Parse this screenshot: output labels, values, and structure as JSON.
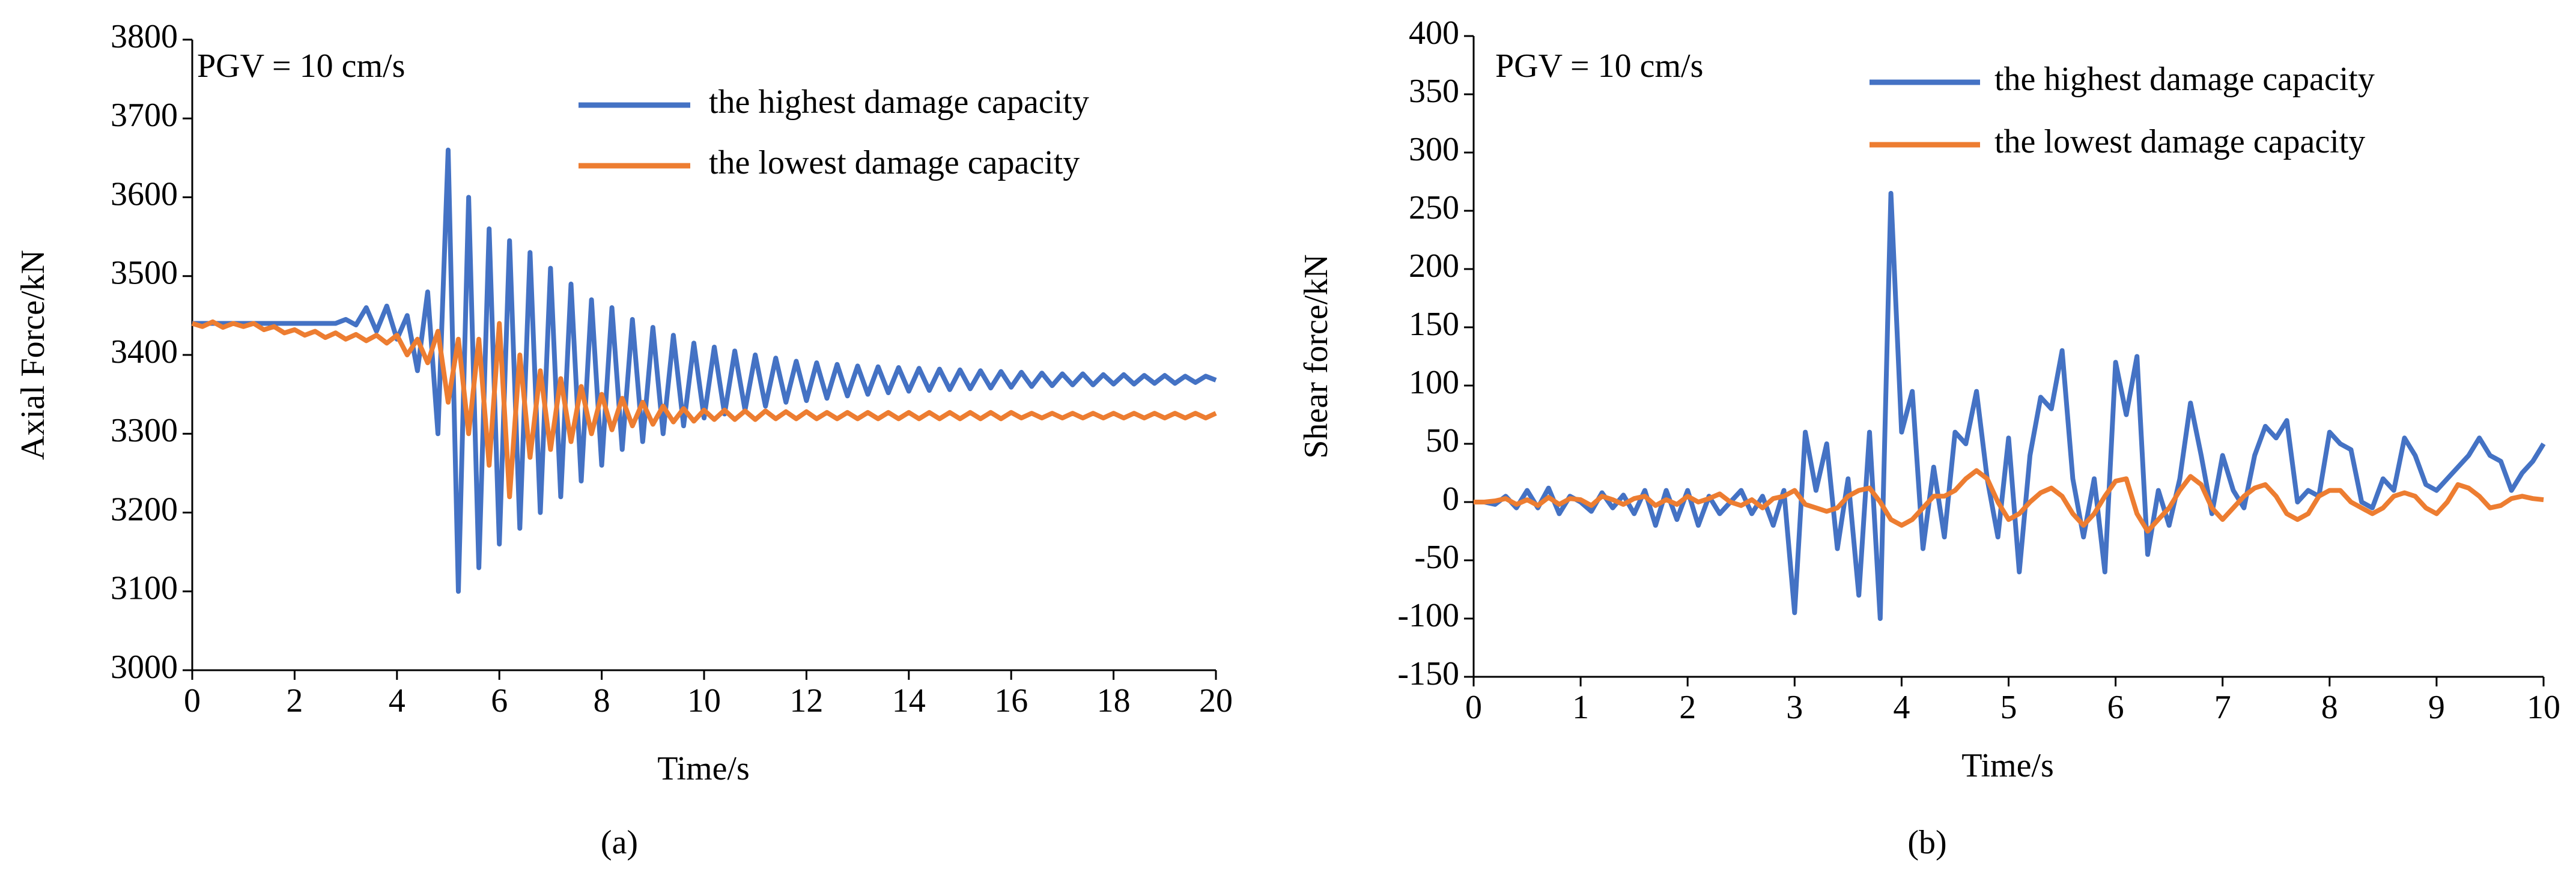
{
  "chart_data": [
    {
      "type": "line",
      "caption": "(a)",
      "annotation": "PGV = 10 cm/s",
      "x_label": "Time/s",
      "y_label": "Axial Force/kN",
      "xlim": [
        0,
        20
      ],
      "xticks": [
        0,
        2,
        4,
        6,
        8,
        10,
        12,
        14,
        16,
        18,
        20
      ],
      "ylim": [
        3000,
        3800
      ],
      "yticks": [
        3000,
        3100,
        3200,
        3300,
        3400,
        3500,
        3600,
        3700,
        3800
      ],
      "legend": "upper right",
      "grid": false,
      "x": [
        0,
        0.2,
        0.4,
        0.6,
        0.8,
        1,
        1.2,
        1.4,
        1.6,
        1.8,
        2,
        2.2,
        2.4,
        2.6,
        2.8,
        3,
        3.2,
        3.4,
        3.6,
        3.8,
        4,
        4.2,
        4.4,
        4.6,
        4.8,
        5,
        5.2,
        5.4,
        5.6,
        5.8,
        6,
        6.2,
        6.4,
        6.6,
        6.8,
        7,
        7.2,
        7.4,
        7.6,
        7.8,
        8,
        8.2,
        8.4,
        8.6,
        8.8,
        9,
        9.2,
        9.4,
        9.6,
        9.8,
        10,
        10.2,
        10.4,
        10.6,
        10.8,
        11,
        11.2,
        11.4,
        11.6,
        11.8,
        12,
        12.2,
        12.4,
        12.6,
        12.8,
        13,
        13.2,
        13.4,
        13.6,
        13.8,
        14,
        14.2,
        14.4,
        14.6,
        14.8,
        15,
        15.2,
        15.4,
        15.6,
        15.8,
        16,
        16.2,
        16.4,
        16.6,
        16.8,
        17,
        17.2,
        17.4,
        17.6,
        17.8,
        18,
        18.2,
        18.4,
        18.6,
        18.8,
        19,
        19.2,
        19.4,
        19.6,
        19.8,
        20
      ],
      "series": [
        {
          "name": "the highest damage capacity",
          "color": "#4472c4",
          "values": [
            3440,
            3440,
            3440,
            3440,
            3440,
            3440,
            3440,
            3440,
            3440,
            3440,
            3440,
            3440,
            3440,
            3440,
            3440,
            3445,
            3438,
            3460,
            3430,
            3462,
            3420,
            3450,
            3380,
            3480,
            3300,
            3660,
            3100,
            3600,
            3130,
            3560,
            3160,
            3545,
            3180,
            3530,
            3200,
            3510,
            3220,
            3490,
            3240,
            3470,
            3260,
            3460,
            3280,
            3445,
            3290,
            3435,
            3300,
            3425,
            3310,
            3415,
            3320,
            3410,
            3325,
            3405,
            3330,
            3400,
            3335,
            3396,
            3340,
            3392,
            3342,
            3390,
            3345,
            3388,
            3348,
            3386,
            3350,
            3385,
            3352,
            3384,
            3354,
            3383,
            3355,
            3382,
            3356,
            3381,
            3357,
            3380,
            3358,
            3379,
            3359,
            3378,
            3360,
            3377,
            3361,
            3376,
            3362,
            3376,
            3362,
            3375,
            3363,
            3375,
            3363,
            3374,
            3364,
            3374,
            3364,
            3373,
            3365,
            3373,
            3368
          ]
        },
        {
          "name": "the lowest damage capacity",
          "color": "#ed7d31",
          "values": [
            3440,
            3436,
            3442,
            3435,
            3440,
            3436,
            3440,
            3432,
            3436,
            3428,
            3432,
            3425,
            3430,
            3422,
            3428,
            3420,
            3426,
            3418,
            3425,
            3415,
            3425,
            3400,
            3420,
            3390,
            3430,
            3340,
            3420,
            3300,
            3420,
            3260,
            3440,
            3220,
            3400,
            3270,
            3380,
            3280,
            3370,
            3290,
            3360,
            3300,
            3350,
            3305,
            3345,
            3310,
            3340,
            3312,
            3335,
            3315,
            3332,
            3316,
            3330,
            3318,
            3330,
            3318,
            3329,
            3318,
            3329,
            3319,
            3328,
            3319,
            3328,
            3319,
            3327,
            3319,
            3327,
            3319,
            3327,
            3319,
            3327,
            3319,
            3327,
            3319,
            3327,
            3319,
            3327,
            3319,
            3327,
            3319,
            3327,
            3319,
            3327,
            3320,
            3326,
            3320,
            3326,
            3320,
            3326,
            3320,
            3326,
            3320,
            3326,
            3320,
            3326,
            3320,
            3326,
            3320,
            3326,
            3320,
            3326,
            3320,
            3326
          ]
        }
      ]
    },
    {
      "type": "line",
      "caption": "(b)",
      "annotation": "PGV = 10 cm/s",
      "x_label": "Time/s",
      "y_label": "Shear force/kN",
      "xlim": [
        0,
        10
      ],
      "xticks": [
        0,
        1,
        2,
        3,
        4,
        5,
        6,
        7,
        8,
        9,
        10
      ],
      "ylim": [
        -150,
        400
      ],
      "yticks": [
        -150,
        -100,
        -50,
        0,
        50,
        100,
        150,
        200,
        250,
        300,
        350,
        400
      ],
      "legend": "upper right",
      "grid": false,
      "x": [
        0,
        0.1,
        0.2,
        0.3,
        0.4,
        0.5,
        0.6,
        0.7,
        0.8,
        0.9,
        1,
        1.1,
        1.2,
        1.3,
        1.4,
        1.5,
        1.6,
        1.7,
        1.8,
        1.9,
        2,
        2.1,
        2.2,
        2.3,
        2.4,
        2.5,
        2.6,
        2.7,
        2.8,
        2.9,
        3,
        3.1,
        3.2,
        3.3,
        3.4,
        3.5,
        3.6,
        3.7,
        3.8,
        3.9,
        4,
        4.1,
        4.2,
        4.3,
        4.4,
        4.5,
        4.6,
        4.7,
        4.8,
        4.9,
        5,
        5.1,
        5.2,
        5.3,
        5.4,
        5.5,
        5.6,
        5.7,
        5.8,
        5.9,
        6,
        6.1,
        6.2,
        6.3,
        6.4,
        6.5,
        6.6,
        6.7,
        6.8,
        6.9,
        7,
        7.1,
        7.2,
        7.3,
        7.4,
        7.5,
        7.6,
        7.7,
        7.8,
        7.9,
        8,
        8.1,
        8.2,
        8.3,
        8.4,
        8.5,
        8.6,
        8.7,
        8.8,
        8.9,
        9,
        9.1,
        9.2,
        9.3,
        9.4,
        9.5,
        9.6,
        9.7,
        9.8,
        9.9,
        10
      ],
      "series": [
        {
          "name": "the highest damage capacity",
          "color": "#4472c4",
          "values": [
            0,
            0,
            -2,
            5,
            -5,
            10,
            -5,
            12,
            -10,
            5,
            0,
            -8,
            8,
            -5,
            6,
            -10,
            10,
            -20,
            10,
            -15,
            10,
            -20,
            5,
            -10,
            0,
            10,
            -10,
            5,
            -20,
            10,
            -95,
            60,
            10,
            50,
            -40,
            20,
            -80,
            60,
            -100,
            265,
            60,
            95,
            -40,
            30,
            -30,
            60,
            50,
            95,
            20,
            -30,
            55,
            -60,
            40,
            90,
            80,
            130,
            20,
            -30,
            20,
            -60,
            120,
            75,
            125,
            -45,
            10,
            -20,
            20,
            85,
            40,
            -10,
            40,
            10,
            -5,
            40,
            65,
            55,
            70,
            0,
            10,
            5,
            60,
            50,
            45,
            0,
            -5,
            20,
            10,
            55,
            40,
            15,
            10,
            20,
            30,
            40,
            55,
            40,
            35,
            10,
            25,
            35,
            50
          ]
        },
        {
          "name": "the lowest damage capacity",
          "color": "#ed7d31",
          "values": [
            0,
            0,
            1,
            3,
            -2,
            2,
            -3,
            4,
            -2,
            3,
            2,
            -3,
            5,
            2,
            -2,
            3,
            5,
            -3,
            2,
            -2,
            5,
            0,
            3,
            7,
            0,
            -3,
            2,
            -5,
            3,
            5,
            10,
            -2,
            -5,
            -8,
            -5,
            5,
            10,
            12,
            0,
            -15,
            -20,
            -15,
            -5,
            5,
            5,
            10,
            20,
            27,
            20,
            0,
            -15,
            -10,
            0,
            8,
            12,
            5,
            -10,
            -20,
            -10,
            5,
            18,
            20,
            -10,
            -25,
            -15,
            -5,
            10,
            22,
            15,
            -5,
            -15,
            -5,
            5,
            12,
            15,
            5,
            -10,
            -15,
            -10,
            5,
            10,
            10,
            0,
            -5,
            -10,
            -5,
            5,
            8,
            5,
            -5,
            -10,
            0,
            15,
            12,
            5,
            -5,
            -3,
            3,
            5,
            3,
            2
          ]
        }
      ]
    }
  ]
}
